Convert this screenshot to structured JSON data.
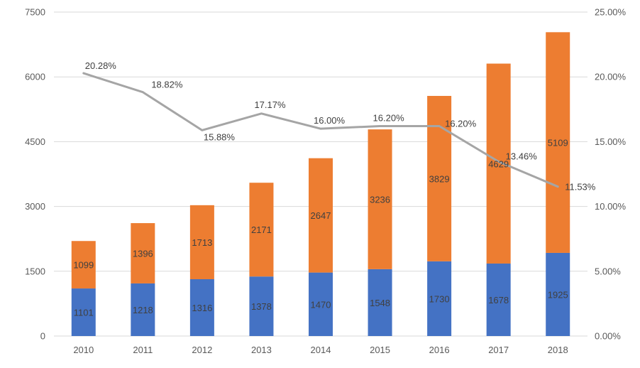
{
  "chart_data": {
    "type": "bar",
    "stacked": true,
    "categories": [
      "2010",
      "2011",
      "2012",
      "2013",
      "2014",
      "2015",
      "2016",
      "2017",
      "2018"
    ],
    "series": [
      {
        "values": [
          1101,
          1218,
          1316,
          1378,
          1470,
          1548,
          1730,
          1678,
          1925
        ],
        "color": "#4472c4",
        "axis": "left"
      },
      {
        "values": [
          1099,
          1396,
          1713,
          2171,
          2647,
          3236,
          3829,
          4629,
          5109
        ],
        "color": "#ed7d31",
        "axis": "left"
      },
      {
        "type": "line",
        "values": [
          20.28,
          18.82,
          15.88,
          17.17,
          16.0,
          16.2,
          16.2,
          13.46,
          11.53
        ],
        "labels": [
          "20.28%",
          "18.82%",
          "15.88%",
          "17.17%",
          "16.00%",
          "16.20%",
          "16.20%",
          "13.46%",
          "11.53%"
        ],
        "color": "#a5a5a5",
        "axis": "right"
      }
    ],
    "ylim": [
      0,
      7500
    ],
    "yticks": [
      0,
      1500,
      3000,
      4500,
      6000,
      7500
    ],
    "ylim_right": [
      0,
      25
    ],
    "yticks_right": [
      "0.00%",
      "5.00%",
      "10.00%",
      "15.00%",
      "20.00%",
      "25.00%"
    ],
    "grid": true,
    "legend": "bottom (cut off)"
  }
}
